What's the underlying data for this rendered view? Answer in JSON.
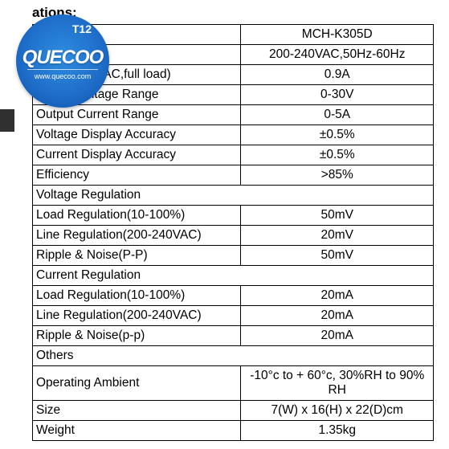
{
  "heading": "ations:",
  "badge": {
    "t12": "T12",
    "brand": "QUECOO",
    "url": "www.quecoo.com"
  },
  "table": {
    "header_label": "",
    "header_value": "MCH-K305D",
    "rows": [
      {
        "type": "kv",
        "label": "e",
        "value": "200-240VAC,50Hz-60Hz"
      },
      {
        "type": "kv",
        "label": "ent (at 220VAC,full load)",
        "value": "0.9A"
      },
      {
        "type": "kv",
        "label": "Output Voltage Range",
        "value": "0-30V"
      },
      {
        "type": "kv",
        "label": "Output Current Range",
        "value": "0-5A"
      },
      {
        "type": "kv",
        "label": "Voltage Display Accuracy",
        "value": "±0.5%"
      },
      {
        "type": "kv",
        "label": "Current Display Accuracy",
        "value": "±0.5%"
      },
      {
        "type": "kv",
        "label": "Efficiency",
        "value": ">85%"
      },
      {
        "type": "section",
        "label": "Voltage Regulation"
      },
      {
        "type": "kv",
        "label": "Load Regulation(10-100%)",
        "value": "50mV"
      },
      {
        "type": "kv",
        "label": "Line Regulation(200-240VAC)",
        "value": "20mV"
      },
      {
        "type": "kv",
        "label": "Ripple & Noise(P-P)",
        "value": "50mV"
      },
      {
        "type": "section",
        "label": "Current Regulation"
      },
      {
        "type": "kv",
        "label": "Load Regulation(10-100%)",
        "value": "20mA"
      },
      {
        "type": "kv",
        "label": "Line Regulation(200-240VAC)",
        "value": "20mA"
      },
      {
        "type": "kv",
        "label": "Ripple & Noise(p-p)",
        "value": "20mA"
      },
      {
        "type": "section",
        "label": "Others"
      },
      {
        "type": "kv",
        "label": "Operating Ambient",
        "value": "-10°c to + 60°c, 30%RH to 90% RH"
      },
      {
        "type": "kv",
        "label": "Size",
        "value": "7(W) x 16(H) x 22(D)cm"
      },
      {
        "type": "kv",
        "label": "Weight",
        "value": "1.35kg"
      }
    ]
  }
}
